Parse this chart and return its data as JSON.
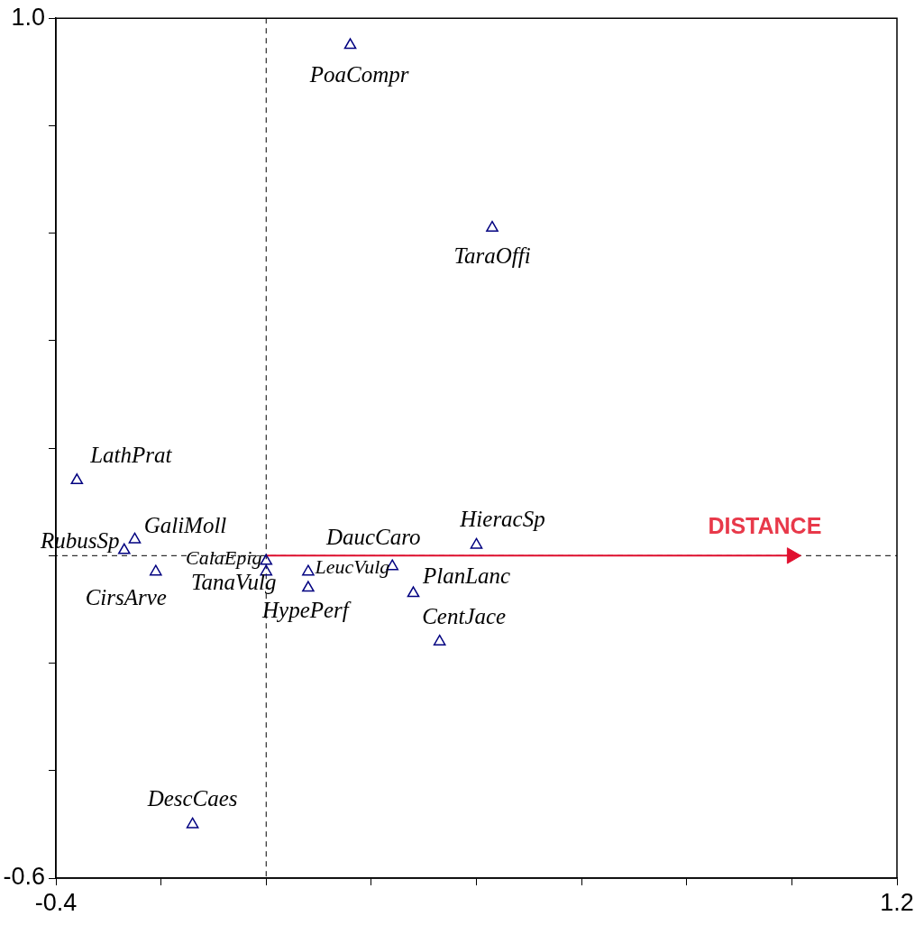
{
  "chart_data": {
    "type": "scatter",
    "marker": "triangle",
    "grid": false,
    "legend": false,
    "xlim": [
      -0.4,
      1.2
    ],
    "ylim": [
      -0.6,
      1.0
    ],
    "xticks": [
      -0.4,
      {
        "value": -0.2,
        "label": null
      },
      {
        "value": 0,
        "label": null
      },
      {
        "value": 0.2,
        "label": null
      },
      {
        "value": 0.4,
        "label": null
      },
      {
        "value": 0.6,
        "label": null
      },
      {
        "value": 0.8,
        "label": null
      },
      {
        "value": 1.0,
        "label": null
      },
      1.2
    ],
    "yticks": [
      -0.6,
      {
        "value": -0.4,
        "label": null
      },
      {
        "value": -0.2,
        "label": null
      },
      {
        "value": 0,
        "label": null
      },
      {
        "value": 0.2,
        "label": null
      },
      {
        "value": 0.4,
        "label": null
      },
      {
        "value": 0.6,
        "label": null
      },
      {
        "value": 0.8,
        "label": null
      },
      {
        "value": 1.0,
        "label": "1.0"
      }
    ],
    "ref_lines": [
      {
        "axis": "x",
        "value": 0,
        "color": "#000000",
        "line_style": "dashed"
      },
      {
        "axis": "y",
        "value": 0,
        "color": "#000000",
        "line_style": "dashed"
      }
    ],
    "series": [
      {
        "name": "PoaCompr",
        "color": "#000080",
        "x": [
          0.16
        ],
        "values": [
          0.95
        ]
      },
      {
        "name": "TaraOffi",
        "color": "#000080",
        "x": [
          0.43
        ],
        "values": [
          0.61
        ]
      },
      {
        "name": "LathPrat",
        "color": "#000080",
        "x": [
          -0.36
        ],
        "values": [
          0.14
        ]
      },
      {
        "name": "RubusSp",
        "color": "#000080",
        "x": [
          -0.27
        ],
        "values": [
          0.01
        ]
      },
      {
        "name": "GaliMoll",
        "color": "#000080",
        "x": [
          -0.25
        ],
        "values": [
          0.03
        ]
      },
      {
        "name": "CirsArve",
        "color": "#000080",
        "x": [
          -0.21
        ],
        "values": [
          -0.03
        ]
      },
      {
        "name": "CalaEpig",
        "color": "#000080",
        "x": [
          0.0
        ],
        "values": [
          -0.01
        ]
      },
      {
        "name": "TanaVulg",
        "color": "#000080",
        "x": [
          0.0
        ],
        "values": [
          -0.03
        ]
      },
      {
        "name": "HypePerf",
        "color": "#000080",
        "x": [
          0.08
        ],
        "values": [
          -0.06
        ]
      },
      {
        "name": "LeucVulg",
        "color": "#000080",
        "x": [
          0.08
        ],
        "values": [
          -0.03
        ]
      },
      {
        "name": "DaucCaro",
        "color": "#000080",
        "x": [
          0.24
        ],
        "values": [
          -0.02
        ]
      },
      {
        "name": "PlanLanc",
        "color": "#000080",
        "x": [
          0.28
        ],
        "values": [
          -0.07
        ]
      },
      {
        "name": "CentJace",
        "color": "#000080",
        "x": [
          0.33
        ],
        "values": [
          -0.16
        ]
      },
      {
        "name": "HieracSp",
        "color": "#000080",
        "x": [
          0.4
        ],
        "values": [
          0.02
        ]
      },
      {
        "name": "DescCaes",
        "color": "#000080",
        "x": [
          -0.14
        ],
        "values": [
          -0.5
        ]
      },
      {
        "name": "DISTANCE",
        "type": "line",
        "line_style": "solid",
        "marker": "triangle",
        "color": "#e0102f",
        "x": [
          0,
          1.0
        ],
        "values": [
          0,
          0
        ]
      }
    ]
  }
}
